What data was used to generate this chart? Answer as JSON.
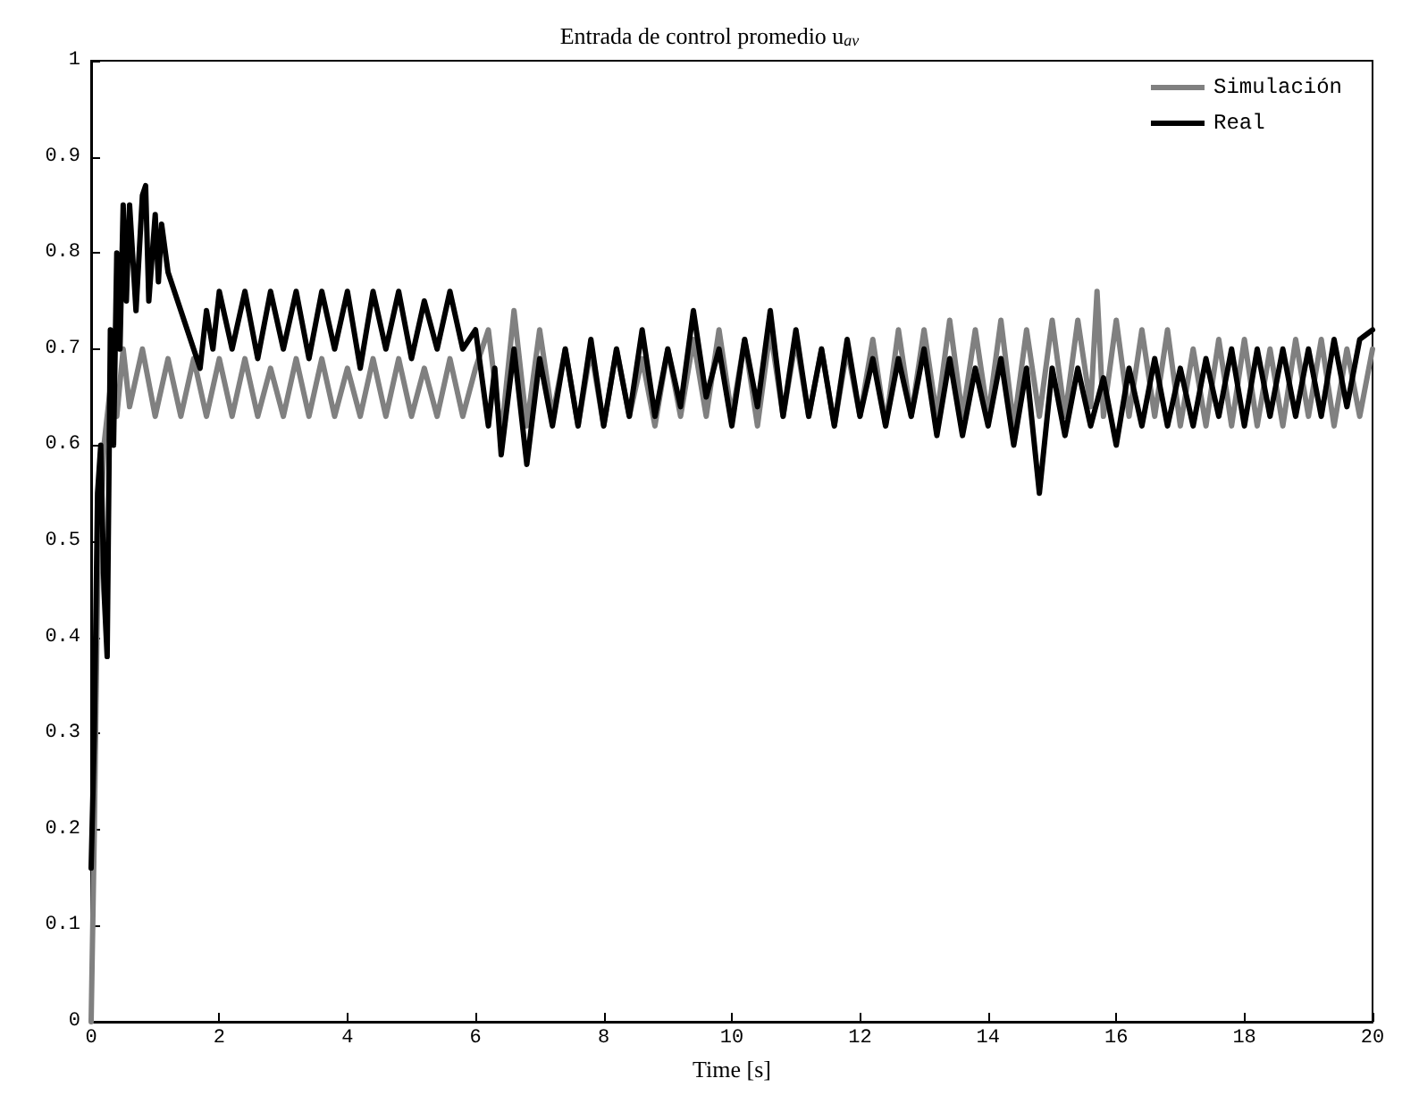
{
  "chart_data": {
    "type": "line",
    "title": "Entrada de control promedio u$_{av}$",
    "xlabel": "Time [s]",
    "xlim": [
      0,
      20
    ],
    "xticks": [
      0,
      2,
      4,
      6,
      8,
      10,
      12,
      14,
      16,
      18,
      20
    ],
    "ylim": [
      0,
      1
    ],
    "yticks": [
      0,
      0.1,
      0.2,
      0.3,
      0.4,
      0.5,
      0.6,
      0.7,
      0.8,
      0.9,
      1
    ],
    "grid": false,
    "legend": "top right",
    "marker": "none",
    "line_style": "solid",
    "series": [
      {
        "name": "Simulación",
        "color": "#808080",
        "x": [
          0,
          0.05,
          0.1,
          0.2,
          0.3,
          0.4,
          0.5,
          0.6,
          0.8,
          1.0,
          1.2,
          1.4,
          1.6,
          1.8,
          2.0,
          2.2,
          2.4,
          2.6,
          2.8,
          3.0,
          3.2,
          3.4,
          3.6,
          3.8,
          4.0,
          4.2,
          4.4,
          4.6,
          4.8,
          5.0,
          5.2,
          5.4,
          5.6,
          5.8,
          6.0,
          6.2,
          6.4,
          6.6,
          6.8,
          7.0,
          7.2,
          7.4,
          7.6,
          7.8,
          8.0,
          8.2,
          8.4,
          8.6,
          8.8,
          9.0,
          9.2,
          9.4,
          9.6,
          9.8,
          10.0,
          10.2,
          10.4,
          10.6,
          10.8,
          11.0,
          11.2,
          11.4,
          11.6,
          11.8,
          12.0,
          12.2,
          12.4,
          12.6,
          12.8,
          13.0,
          13.2,
          13.4,
          13.6,
          13.8,
          14.0,
          14.2,
          14.4,
          14.6,
          14.8,
          15.0,
          15.2,
          15.4,
          15.6,
          15.7,
          15.8,
          16.0,
          16.2,
          16.4,
          16.6,
          16.8,
          17.0,
          17.2,
          17.4,
          17.6,
          17.8,
          18.0,
          18.2,
          18.4,
          18.6,
          18.8,
          19.0,
          19.2,
          19.4,
          19.6,
          19.8,
          20.0
        ],
        "values": [
          0,
          0.2,
          0.45,
          0.6,
          0.66,
          0.63,
          0.7,
          0.64,
          0.7,
          0.63,
          0.69,
          0.63,
          0.69,
          0.63,
          0.69,
          0.63,
          0.69,
          0.63,
          0.68,
          0.63,
          0.69,
          0.63,
          0.69,
          0.63,
          0.68,
          0.63,
          0.69,
          0.63,
          0.69,
          0.63,
          0.68,
          0.63,
          0.69,
          0.63,
          0.68,
          0.72,
          0.61,
          0.74,
          0.62,
          0.72,
          0.63,
          0.7,
          0.62,
          0.7,
          0.62,
          0.7,
          0.63,
          0.69,
          0.62,
          0.7,
          0.63,
          0.71,
          0.63,
          0.72,
          0.63,
          0.71,
          0.62,
          0.72,
          0.63,
          0.71,
          0.63,
          0.7,
          0.62,
          0.7,
          0.63,
          0.71,
          0.62,
          0.72,
          0.63,
          0.72,
          0.63,
          0.73,
          0.63,
          0.72,
          0.63,
          0.73,
          0.62,
          0.72,
          0.63,
          0.73,
          0.63,
          0.73,
          0.64,
          0.76,
          0.63,
          0.73,
          0.63,
          0.72,
          0.63,
          0.72,
          0.62,
          0.7,
          0.62,
          0.71,
          0.62,
          0.71,
          0.62,
          0.7,
          0.62,
          0.71,
          0.63,
          0.71,
          0.62,
          0.7,
          0.63,
          0.7
        ]
      },
      {
        "name": "Real",
        "color": "#000000",
        "x": [
          0,
          0.05,
          0.1,
          0.15,
          0.2,
          0.25,
          0.3,
          0.35,
          0.4,
          0.45,
          0.5,
          0.55,
          0.6,
          0.7,
          0.8,
          0.85,
          0.9,
          1.0,
          1.05,
          1.1,
          1.2,
          1.4,
          1.6,
          1.7,
          1.8,
          1.9,
          2.0,
          2.2,
          2.4,
          2.6,
          2.8,
          3.0,
          3.2,
          3.4,
          3.6,
          3.8,
          4.0,
          4.2,
          4.4,
          4.6,
          4.8,
          5.0,
          5.2,
          5.4,
          5.6,
          5.8,
          6.0,
          6.2,
          6.3,
          6.4,
          6.6,
          6.8,
          7.0,
          7.2,
          7.4,
          7.6,
          7.8,
          8.0,
          8.2,
          8.4,
          8.6,
          8.8,
          9.0,
          9.2,
          9.4,
          9.6,
          9.8,
          10.0,
          10.2,
          10.4,
          10.6,
          10.8,
          11.0,
          11.2,
          11.4,
          11.6,
          11.8,
          12.0,
          12.2,
          12.4,
          12.6,
          12.8,
          13.0,
          13.2,
          13.4,
          13.6,
          13.8,
          14.0,
          14.2,
          14.4,
          14.6,
          14.8,
          15.0,
          15.2,
          15.4,
          15.6,
          15.8,
          16.0,
          16.2,
          16.4,
          16.6,
          16.8,
          17.0,
          17.2,
          17.4,
          17.6,
          17.8,
          18.0,
          18.2,
          18.4,
          18.6,
          18.8,
          19.0,
          19.2,
          19.4,
          19.6,
          19.8,
          20.0
        ],
        "values": [
          0.16,
          0.3,
          0.55,
          0.6,
          0.45,
          0.38,
          0.72,
          0.6,
          0.8,
          0.7,
          0.85,
          0.75,
          0.85,
          0.74,
          0.86,
          0.87,
          0.75,
          0.84,
          0.77,
          0.83,
          0.78,
          0.74,
          0.7,
          0.68,
          0.74,
          0.7,
          0.76,
          0.7,
          0.76,
          0.69,
          0.76,
          0.7,
          0.76,
          0.69,
          0.76,
          0.7,
          0.76,
          0.68,
          0.76,
          0.7,
          0.76,
          0.69,
          0.75,
          0.7,
          0.76,
          0.7,
          0.72,
          0.62,
          0.68,
          0.59,
          0.7,
          0.58,
          0.69,
          0.62,
          0.7,
          0.62,
          0.71,
          0.62,
          0.7,
          0.63,
          0.72,
          0.63,
          0.7,
          0.64,
          0.74,
          0.65,
          0.7,
          0.62,
          0.71,
          0.64,
          0.74,
          0.63,
          0.72,
          0.63,
          0.7,
          0.62,
          0.71,
          0.63,
          0.69,
          0.62,
          0.69,
          0.63,
          0.7,
          0.61,
          0.69,
          0.61,
          0.68,
          0.62,
          0.69,
          0.6,
          0.68,
          0.55,
          0.68,
          0.61,
          0.68,
          0.62,
          0.67,
          0.6,
          0.68,
          0.62,
          0.69,
          0.62,
          0.68,
          0.62,
          0.69,
          0.63,
          0.7,
          0.62,
          0.7,
          0.63,
          0.7,
          0.63,
          0.7,
          0.63,
          0.71,
          0.64,
          0.71,
          0.72
        ]
      }
    ]
  }
}
